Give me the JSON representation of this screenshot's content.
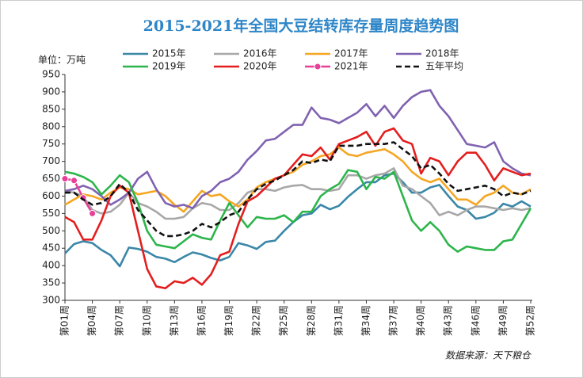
{
  "chart_data": {
    "type": "line",
    "title": "2015-2021年全国大豆结转库存量周度趋势图",
    "y_label": "单位：万吨",
    "source": "数据来源：天下粮仓",
    "categories": [
      "第01周",
      null,
      null,
      "第04周",
      null,
      null,
      "第07周",
      null,
      null,
      "第10周",
      null,
      null,
      "第13周",
      null,
      null,
      "第16周",
      null,
      null,
      "第19周",
      null,
      null,
      "第22周",
      null,
      null,
      "第25周",
      null,
      null,
      "第28周",
      null,
      null,
      "第31周",
      null,
      null,
      "第34周",
      null,
      null,
      "第37周",
      null,
      null,
      "第40周",
      null,
      null,
      "第43周",
      null,
      null,
      "第46周",
      null,
      null,
      "第49周",
      null,
      null,
      "第52周"
    ],
    "ylim": [
      300,
      950
    ],
    "yticks": [
      300,
      350,
      400,
      450,
      500,
      550,
      600,
      650,
      700,
      750,
      800,
      850,
      900,
      950
    ],
    "grid": false,
    "series": [
      {
        "name": "2015年",
        "color": "#3a87a8",
        "dash": false,
        "markers": false,
        "values": [
          435,
          462,
          470,
          465,
          445,
          430,
          398,
          452,
          448,
          440,
          425,
          420,
          410,
          425,
          438,
          432,
          422,
          415,
          425,
          465,
          458,
          448,
          468,
          472,
          500,
          525,
          545,
          550,
          575,
          562,
          572,
          598,
          620,
          640,
          640,
          660,
          665,
          640,
          610,
          610,
          625,
          632,
          600,
          570,
          560,
          535,
          540,
          552,
          578,
          570,
          585,
          570
        ]
      },
      {
        "name": "2016年",
        "color": "#a8a8a8",
        "dash": false,
        "markers": false,
        "values": [
          615,
          610,
          600,
          560,
          550,
          555,
          575,
          610,
          580,
          570,
          555,
          535,
          535,
          540,
          565,
          580,
          575,
          560,
          560,
          580,
          610,
          620,
          620,
          615,
          625,
          630,
          632,
          620,
          620,
          615,
          620,
          660,
          660,
          650,
          660,
          665,
          680,
          630,
          620,
          600,
          580,
          545,
          555,
          545,
          560,
          570,
          570,
          565,
          560,
          565,
          560,
          565
        ]
      },
      {
        "name": "2017年",
        "color": "#f5a623",
        "dash": false,
        "markers": false,
        "values": [
          575,
          590,
          605,
          600,
          590,
          610,
          625,
          620,
          605,
          610,
          615,
          600,
          575,
          555,
          585,
          615,
          600,
          605,
          585,
          570,
          590,
          625,
          640,
          650,
          660,
          670,
          690,
          700,
          715,
          720,
          740,
          720,
          715,
          725,
          730,
          735,
          720,
          700,
          670,
          650,
          640,
          650,
          620,
          590,
          590,
          575,
          600,
          610,
          630,
          610,
          605,
          620
        ]
      },
      {
        "name": "2018年",
        "color": "#8062b0",
        "dash": false,
        "markers": false,
        "values": [
          615,
          620,
          630,
          620,
          600,
          575,
          590,
          610,
          650,
          670,
          620,
          580,
          570,
          575,
          565,
          600,
          615,
          640,
          650,
          670,
          705,
          730,
          760,
          765,
          785,
          805,
          805,
          855,
          825,
          820,
          810,
          825,
          840,
          865,
          830,
          860,
          825,
          860,
          885,
          900,
          905,
          860,
          830,
          790,
          750,
          745,
          740,
          755,
          700,
          680,
          665,
          660
        ]
      },
      {
        "name": "2019年",
        "color": "#2db54b",
        "dash": false,
        "markers": false,
        "values": [
          670,
          665,
          655,
          640,
          605,
          630,
          660,
          640,
          580,
          500,
          460,
          455,
          450,
          470,
          490,
          480,
          475,
          530,
          580,
          545,
          510,
          540,
          535,
          535,
          545,
          525,
          555,
          555,
          600,
          620,
          635,
          675,
          670,
          620,
          655,
          650,
          670,
          600,
          530,
          500,
          525,
          500,
          460,
          440,
          455,
          450,
          445,
          445,
          470,
          475,
          520,
          565
        ]
      },
      {
        "name": "2020年",
        "color": "#e41e1e",
        "dash": false,
        "markers": false,
        "values": [
          540,
          525,
          475,
          475,
          530,
          600,
          630,
          610,
          500,
          390,
          340,
          335,
          355,
          350,
          365,
          345,
          375,
          430,
          440,
          520,
          585,
          600,
          625,
          650,
          660,
          690,
          720,
          715,
          740,
          705,
          750,
          760,
          770,
          785,
          745,
          785,
          795,
          760,
          750,
          665,
          710,
          700,
          660,
          700,
          725,
          725,
          690,
          645,
          680,
          670,
          660,
          665
        ]
      },
      {
        "name": "2021年",
        "color": "#e8409a",
        "dash": false,
        "markers": true,
        "values": [
          650,
          645,
          595,
          550,
          null,
          null,
          null,
          null,
          null,
          null,
          null,
          null,
          null,
          null,
          null,
          null,
          null,
          null,
          null,
          null,
          null,
          null,
          null,
          null,
          null,
          null,
          null,
          null,
          null,
          null,
          null,
          null,
          null,
          null,
          null,
          null,
          null,
          null,
          null,
          null,
          null,
          null,
          null,
          null,
          null,
          null,
          null,
          null,
          null,
          null,
          null,
          null
        ]
      },
      {
        "name": "五年平均",
        "color": "#111111",
        "dash": true,
        "markers": false,
        "values": [
          610,
          610,
          590,
          575,
          580,
          600,
          635,
          610,
          560,
          530,
          500,
          485,
          485,
          490,
          500,
          520,
          510,
          525,
          545,
          555,
          590,
          620,
          635,
          645,
          660,
          675,
          700,
          695,
          705,
          700,
          745,
          745,
          745,
          750,
          750,
          750,
          755,
          735,
          715,
          680,
          690,
          665,
          635,
          615,
          620,
          625,
          630,
          620,
          600,
          610,
          605,
          615
        ]
      }
    ]
  }
}
